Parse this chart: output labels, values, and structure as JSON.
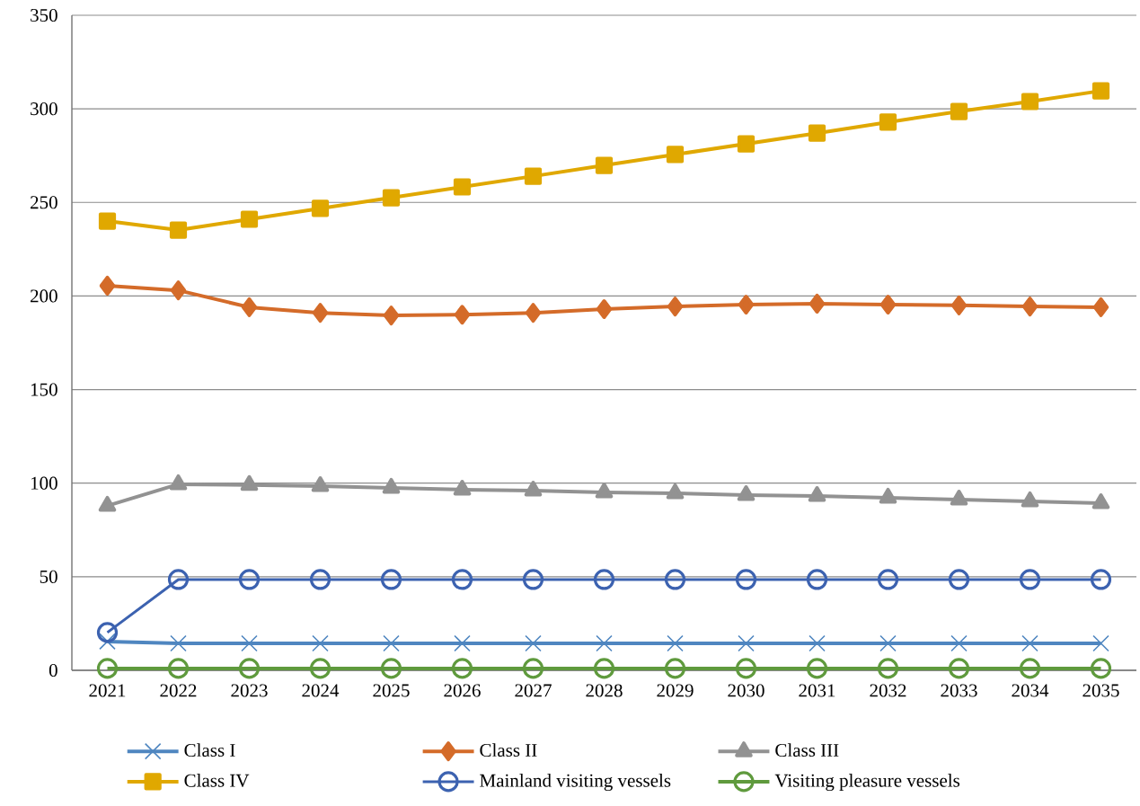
{
  "chart_data": {
    "type": "line",
    "categories": [
      "2021",
      "2022",
      "2023",
      "2024",
      "2025",
      "2026",
      "2027",
      "2028",
      "2029",
      "2030",
      "2031",
      "2032",
      "2033",
      "2034",
      "2035"
    ],
    "series": [
      {
        "name": "Class I",
        "color": "#4f86c0",
        "marker": "cross",
        "values": [
          15.4,
          14.4,
          14.4,
          14.4,
          14.4,
          14.4,
          14.4,
          14.4,
          14.4,
          14.4,
          14.4,
          14.4,
          14.4,
          14.4,
          14.4
        ]
      },
      {
        "name": "Class II",
        "color": "#d46b29",
        "marker": "diamond",
        "values": [
          205.5,
          203,
          194,
          191,
          189.6,
          190,
          191,
          193,
          194.4,
          195.4,
          195.9,
          195.4,
          195,
          194.4,
          194
        ]
      },
      {
        "name": "Class III",
        "color": "#929292",
        "marker": "triangle",
        "values": [
          87.9,
          99.4,
          99,
          98.4,
          97.5,
          96.5,
          96,
          95,
          94.6,
          93.6,
          93.1,
          92.2,
          91.2,
          90.3,
          89.3
        ]
      },
      {
        "name": "Class IV",
        "color": "#e0a800",
        "marker": "square",
        "values": [
          240,
          235.2,
          241,
          246.8,
          252.5,
          258.3,
          264,
          269.8,
          275.6,
          281.3,
          287,
          292.9,
          298.6,
          303.9,
          309.6
        ]
      },
      {
        "name": "Mainland visiting vessels",
        "color": "#3c62b0",
        "marker": "circle",
        "values": [
          20.2,
          48.5,
          48.5,
          48.5,
          48.5,
          48.5,
          48.5,
          48.5,
          48.5,
          48.5,
          48.5,
          48.5,
          48.5,
          48.5,
          48.5
        ]
      },
      {
        "name": "Visiting pleasure vessels",
        "color": "#5f9a3d",
        "marker": "circle",
        "values": [
          1,
          1,
          1,
          1,
          1,
          1,
          1,
          1,
          1,
          1,
          1,
          1,
          1,
          1,
          1
        ]
      }
    ],
    "ylim": [
      0,
      350
    ],
    "yticks": [
      0,
      50,
      100,
      150,
      200,
      250,
      300,
      350
    ],
    "grid": "y",
    "legend": "bottom",
    "line_style": "solid"
  }
}
